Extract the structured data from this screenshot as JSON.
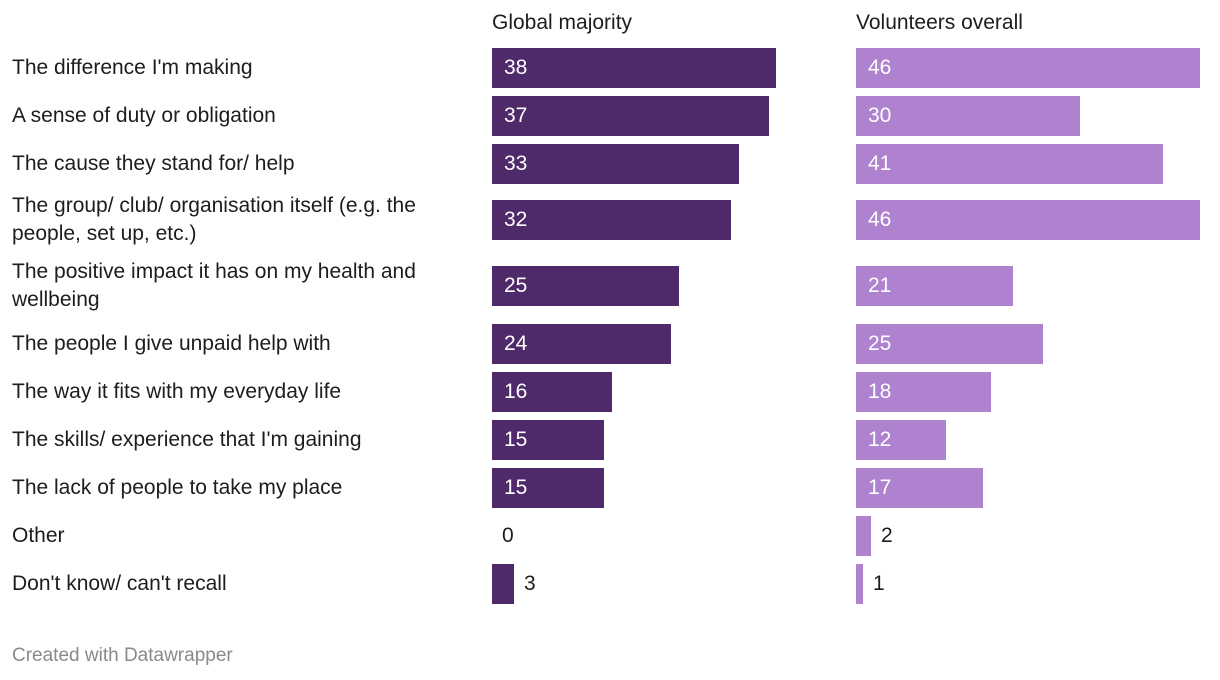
{
  "chart_data": {
    "type": "bar",
    "orientation": "horizontal",
    "layout": "split-bars",
    "categories": [
      "The difference I'm making",
      "A sense of duty or obligation",
      "The cause they stand for/ help",
      "The group/ club/ organisation itself (e.g. the people, set up, etc.)",
      "The positive impact it has on my health and wellbeing",
      "The people I give unpaid help with",
      "The way it fits with my everyday life",
      "The skills/ experience that I'm gaining",
      "The lack of people to take my place",
      "Other",
      "Don't know/ can't recall"
    ],
    "series": [
      {
        "name": "Global majority",
        "color": "#4e2a6a",
        "values": [
          38,
          37,
          33,
          32,
          25,
          24,
          16,
          15,
          15,
          0,
          3
        ]
      },
      {
        "name": "Volunteers overall",
        "color": "#ae82cf",
        "values": [
          46,
          30,
          41,
          46,
          21,
          25,
          18,
          12,
          17,
          2,
          1
        ]
      }
    ],
    "xlim": [
      0,
      46
    ],
    "grid": false,
    "legend": "none"
  },
  "footer": {
    "credit": "Created with Datawrapper"
  }
}
